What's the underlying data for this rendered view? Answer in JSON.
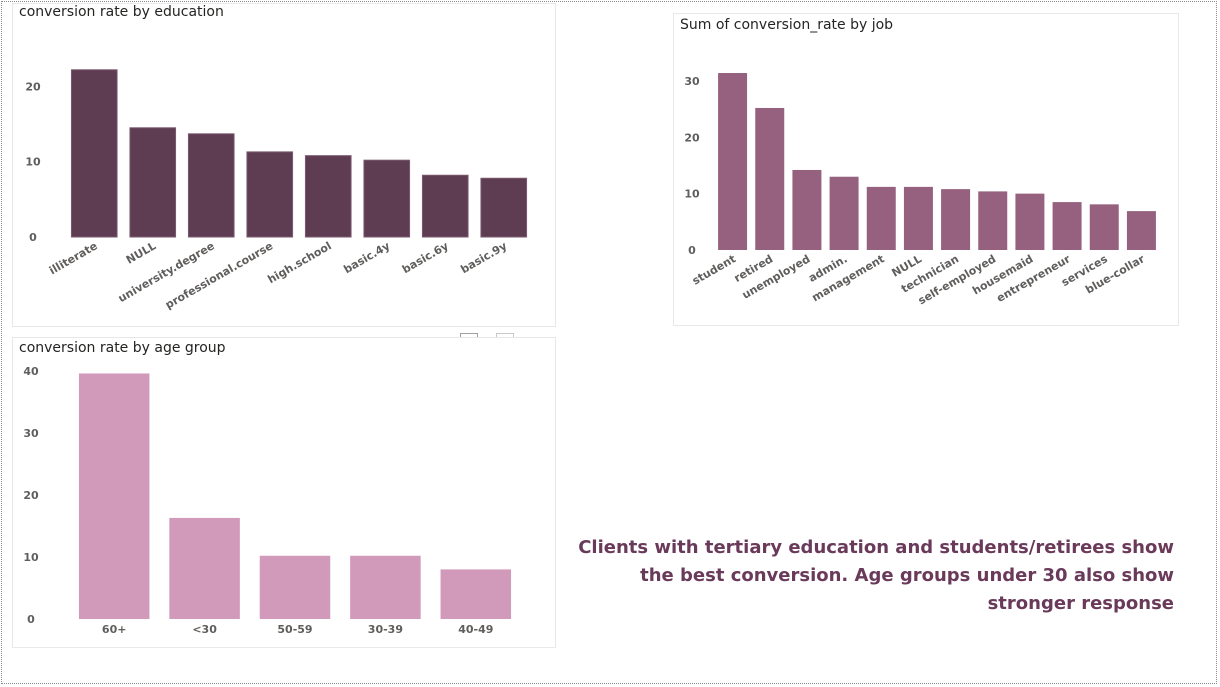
{
  "colors": {
    "education_bar": "#5e3c52",
    "job_bar": "#95617e",
    "age_bar": "#d19aba",
    "insight_text": "#6a3a5a"
  },
  "insight": {
    "text": "Clients with tertiary education and students/retirees show the best conversion. Age groups under 30 also show stronger response"
  },
  "chart_data": [
    {
      "type": "bar",
      "title": "conversion rate by education",
      "categories": [
        "illiterate",
        "NULL",
        "university.degree",
        "professional.course",
        "high.school",
        "basic.4y",
        "basic.6y",
        "basic.9y"
      ],
      "values": [
        22.2,
        14.5,
        13.7,
        11.3,
        10.8,
        10.2,
        8.2,
        7.8
      ],
      "yticks": [
        "0",
        "10",
        "20"
      ],
      "ylim": [
        0,
        23.5
      ],
      "xlabel": "",
      "ylabel": "",
      "grid": false,
      "legend": "none"
    },
    {
      "type": "bar",
      "title": "Sum of conversion_rate by job",
      "categories": [
        "student",
        "retired",
        "unemployed",
        "admin.",
        "management",
        "NULL",
        "technician",
        "self-employed",
        "housemaid",
        "entrepreneur",
        "services",
        "blue-collar"
      ],
      "values": [
        31.4,
        25.2,
        14.2,
        13.0,
        11.2,
        11.2,
        10.8,
        10.4,
        10.0,
        8.5,
        8.1,
        6.9
      ],
      "yticks": [
        "0",
        "10",
        "20",
        "30"
      ],
      "ylim": [
        0,
        33
      ],
      "xlabel": "",
      "ylabel": "",
      "grid": false,
      "legend": "none"
    },
    {
      "type": "bar",
      "title": "conversion rate by age group",
      "categories": [
        "60+",
        "<30",
        "50-59",
        "30-39",
        "40-49"
      ],
      "values": [
        39.6,
        16.3,
        10.2,
        10.2,
        8.0
      ],
      "yticks": [
        "0",
        "10",
        "20",
        "30",
        "40"
      ],
      "ylim": [
        0,
        40
      ],
      "xlabel": "",
      "ylabel": "",
      "grid": false,
      "legend": "none"
    }
  ]
}
